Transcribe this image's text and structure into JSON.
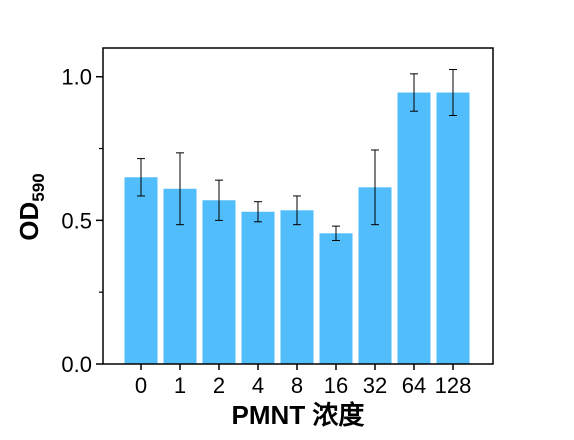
{
  "chart_data": {
    "type": "bar",
    "categories": [
      "0",
      "1",
      "2",
      "4",
      "8",
      "16",
      "32",
      "64",
      "128"
    ],
    "values": [
      0.65,
      0.61,
      0.57,
      0.53,
      0.535,
      0.455,
      0.615,
      0.945,
      0.945
    ],
    "errors": [
      0.065,
      0.125,
      0.07,
      0.035,
      0.05,
      0.025,
      0.13,
      0.065,
      0.08
    ],
    "xlabel": "PMNT 浓度",
    "ylabel_main": "OD",
    "ylabel_sub": "590",
    "ylim": [
      0,
      1.1
    ],
    "yticks": [
      0.0,
      0.5,
      1.0
    ],
    "ytick_labels": [
      "0.0",
      "0.5",
      "1.0"
    ],
    "bar_color": "#52bdfb",
    "grid": false
  }
}
